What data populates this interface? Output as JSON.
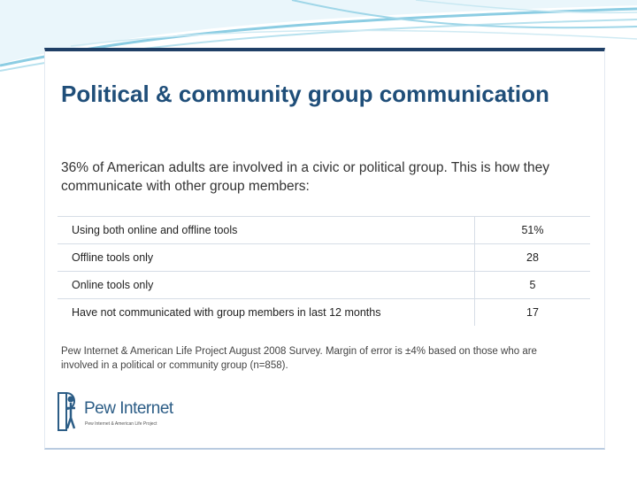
{
  "slide": {
    "title": "Political & community group communication",
    "subtitle": "36% of American adults are involved in a civic or political group. This is how they communicate with other group members:",
    "rows": [
      {
        "label": "Using both online and offline tools",
        "value": "51%"
      },
      {
        "label": "Offline tools only",
        "value": "28"
      },
      {
        "label": "Online tools only",
        "value": "5"
      },
      {
        "label": "Have not communicated with group members in last 12 months",
        "value": "17"
      }
    ],
    "source": "Pew Internet & American Life Project August 2008 Survey. Margin of error is ±4% based on those who are involved in a political or community group (n=858).",
    "logo": {
      "name": "Pew Internet",
      "tagline": "Pew Internet & American Life Project",
      "icon": "pew-figure-icon"
    }
  },
  "colors": {
    "title": "#1f4e79",
    "card_border": "#1f3f66",
    "swoosh": "#7fc4dc"
  }
}
